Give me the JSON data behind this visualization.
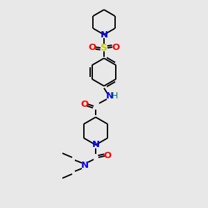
{
  "background_color": "#e8e8e8",
  "bond_color": "#000000",
  "fig_size": [
    3.0,
    3.0
  ],
  "dpi": 100,
  "atom_colors": {
    "N": "#0000ee",
    "O": "#ff0000",
    "S": "#cccc00",
    "H": "#007070",
    "C": "#000000"
  },
  "lw": 1.4,
  "fontsize": 9.5
}
